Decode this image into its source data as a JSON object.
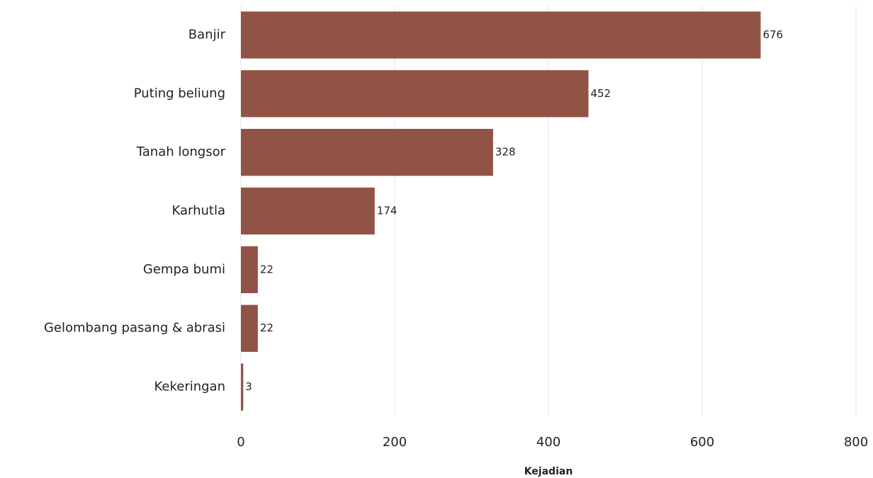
{
  "chart_data": {
    "type": "bar",
    "orientation": "horizontal",
    "categories": [
      "Banjir",
      "Puting beliung",
      "Tanah longsor",
      "Karhutla",
      "Gempa bumi",
      "Gelombang pasang & abrasi",
      "Kekeringan"
    ],
    "values": [
      676,
      452,
      328,
      174,
      22,
      22,
      3
    ],
    "data_labels": [
      "676",
      "452",
      "328",
      "174",
      "22",
      "22",
      "3"
    ],
    "xlabel": "Kejadian",
    "ylabel": "",
    "xlim": [
      0,
      800
    ],
    "xticks": [
      0,
      200,
      400,
      600,
      800
    ],
    "xtick_labels": [
      "0",
      "200",
      "400",
      "600",
      "800"
    ],
    "grid": true,
    "legend": "none",
    "bar_color": "#8b4a3c"
  }
}
